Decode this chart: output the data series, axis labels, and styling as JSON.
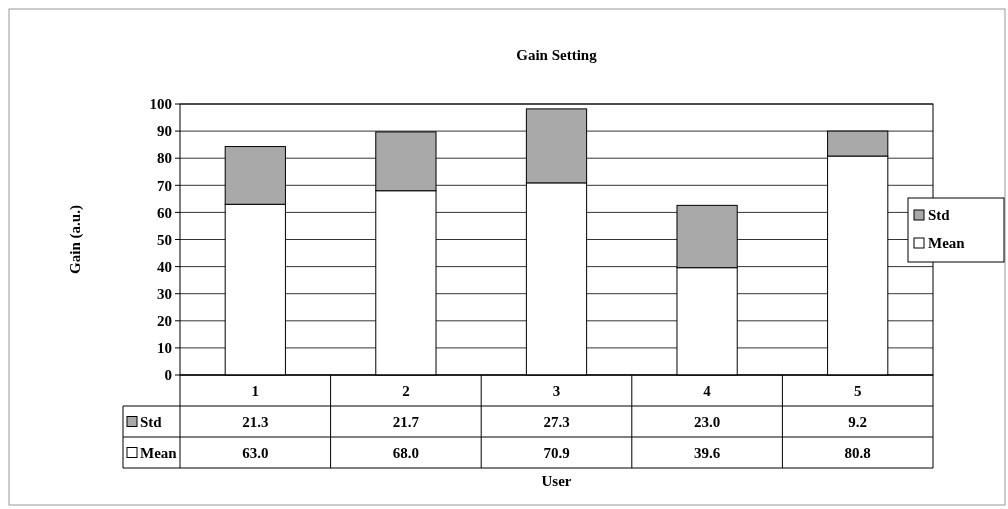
{
  "chart_data": {
    "type": "bar",
    "title": "Gain Setting",
    "xlabel": "User",
    "ylabel": "Gain (a.u.)",
    "categories": [
      "1",
      "2",
      "3",
      "4",
      "5"
    ],
    "stacked": true,
    "series": [
      {
        "name": "Mean",
        "color": "#ffffff",
        "values": [
          63.0,
          68.0,
          70.9,
          39.6,
          80.8
        ],
        "value_labels": [
          "63.0",
          "68.0",
          "70.9",
          "39.6",
          "80.8"
        ]
      },
      {
        "name": "Std",
        "color": "#a9a9a9",
        "values": [
          21.3,
          21.7,
          27.3,
          23.0,
          9.2
        ],
        "value_labels": [
          "21.3",
          "21.7",
          "27.3",
          "23.0",
          "9.2"
        ]
      }
    ],
    "ylim": [
      0,
      100
    ],
    "yticks": [
      0,
      10,
      20,
      30,
      40,
      50,
      60,
      70,
      80,
      90,
      100
    ],
    "grid": "y",
    "legend": "right"
  }
}
